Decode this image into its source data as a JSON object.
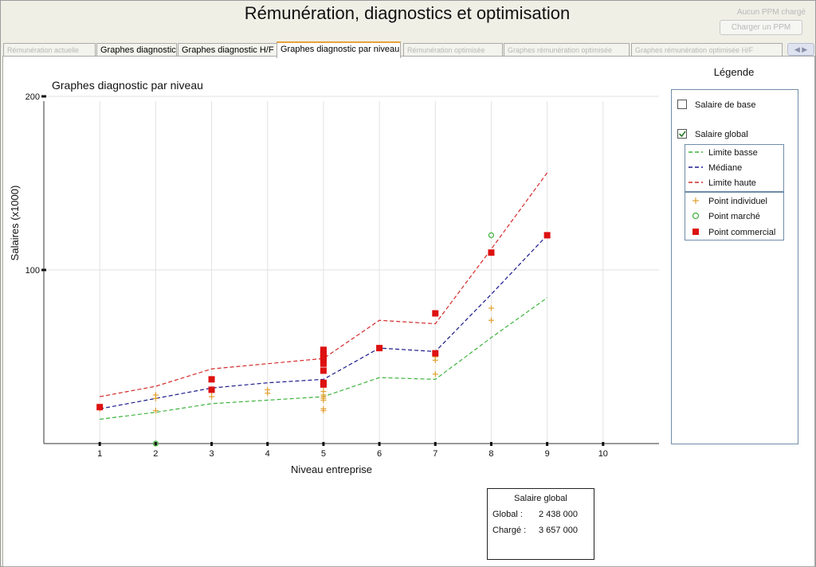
{
  "window": {
    "title": "Rémunération, diagnostics et optimisation",
    "status_text": "Aucun PPM chargé",
    "load_button": "Charger un PPM"
  },
  "tabs": [
    {
      "label": "Rémunération actuelle",
      "state": "disabled"
    },
    {
      "label": "Graphes diagnostic",
      "state": "enabled"
    },
    {
      "label": "Graphes diagnostic H/F",
      "state": "enabled"
    },
    {
      "label": "Graphes diagnostic par niveau",
      "state": "active"
    },
    {
      "label": "Rémunération optimisée",
      "state": "disabled"
    },
    {
      "label": "Graphes rémunération optimisée",
      "state": "disabled"
    },
    {
      "label": "Graphes rémunération optimisée H/F",
      "state": "disabled"
    }
  ],
  "tab_scroll": "◀ ▶",
  "colors": {
    "limite_basse": "#3db33d",
    "mediane": "#1a1a8c",
    "limite_haute": "#d42a2a",
    "point_individuel": "#e0a030",
    "point_marche": "#3db33d",
    "point_commercial": "#dd1111",
    "active_tab_accent": "#e8a23a"
  },
  "legend": {
    "title": "Légende",
    "checkboxes": [
      {
        "label": "Salaire de base",
        "checked": false
      },
      {
        "label": "Salaire global",
        "checked": true
      }
    ],
    "lines": [
      {
        "label": "Limite basse",
        "color_key": "limite_basse"
      },
      {
        "label": "Médiane",
        "color_key": "mediane"
      },
      {
        "label": "Limite haute",
        "color_key": "limite_haute"
      }
    ],
    "points": [
      {
        "label": "Point individuel",
        "symbol": "plus",
        "color_key": "point_individuel"
      },
      {
        "label": "Point marché",
        "symbol": "circle",
        "color_key": "point_marche"
      },
      {
        "label": "Point commercial",
        "symbol": "square",
        "color_key": "point_commercial"
      }
    ]
  },
  "summary": {
    "title": "Salaire global",
    "global_label": "Global :",
    "global_value": "2 438 000",
    "charge_label": "Chargé :",
    "charge_value": "3 657 000"
  },
  "chart_data": {
    "type": "line",
    "title": "Graphes diagnostic par niveau",
    "xlabel": "Niveau entreprise",
    "ylabel": "Salaires (x1000)",
    "xlim": [
      0,
      10
    ],
    "ylim": [
      0,
      200
    ],
    "x_ticks": [
      1,
      2,
      3,
      4,
      5,
      6,
      7,
      8,
      9,
      10
    ],
    "y_ticks": [
      100,
      200
    ],
    "grid": true,
    "legend_position": "right",
    "series": [
      {
        "name": "Limite basse",
        "x": [
          1,
          2,
          3,
          4,
          5,
          6,
          7,
          8,
          9
        ],
        "values": [
          14,
          18,
          23,
          25,
          27,
          38,
          37,
          61,
          84
        ]
      },
      {
        "name": "Médiane",
        "x": [
          1,
          2,
          3,
          4,
          5,
          6,
          7,
          8,
          9
        ],
        "values": [
          20,
          26,
          32,
          35,
          37,
          55,
          53,
          86,
          120
        ]
      },
      {
        "name": "Limite haute",
        "x": [
          1,
          2,
          3,
          4,
          5,
          6,
          7,
          8,
          9
        ],
        "values": [
          27,
          33,
          43,
          46,
          49,
          71,
          69,
          112,
          156
        ]
      }
    ],
    "points": {
      "individuel": [
        [
          1,
          20
        ],
        [
          2,
          26
        ],
        [
          2,
          28
        ],
        [
          2,
          19
        ],
        [
          3,
          27
        ],
        [
          3,
          30
        ],
        [
          4,
          29
        ],
        [
          4,
          31
        ],
        [
          5,
          30
        ],
        [
          5,
          28
        ],
        [
          5,
          27
        ],
        [
          5,
          26
        ],
        [
          5,
          25
        ],
        [
          5,
          20
        ],
        [
          5,
          19
        ],
        [
          5,
          33
        ],
        [
          5,
          35
        ],
        [
          6,
          55
        ],
        [
          7,
          48
        ],
        [
          7,
          50
        ],
        [
          7,
          40
        ],
        [
          8,
          78
        ],
        [
          8,
          71
        ]
      ],
      "marche": [
        [
          2,
          0
        ],
        [
          8,
          120
        ]
      ],
      "commercial": [
        [
          1,
          21
        ],
        [
          3,
          31
        ],
        [
          3,
          37
        ],
        [
          5,
          52
        ],
        [
          5,
          53
        ],
        [
          5,
          54
        ],
        [
          5,
          51
        ],
        [
          5,
          50
        ],
        [
          5,
          49
        ],
        [
          5,
          48
        ],
        [
          5,
          46
        ],
        [
          5,
          42
        ],
        [
          5,
          35
        ],
        [
          5,
          34
        ],
        [
          6,
          55
        ],
        [
          7,
          52
        ],
        [
          7,
          75
        ],
        [
          8,
          110
        ],
        [
          9,
          120
        ]
      ]
    }
  }
}
